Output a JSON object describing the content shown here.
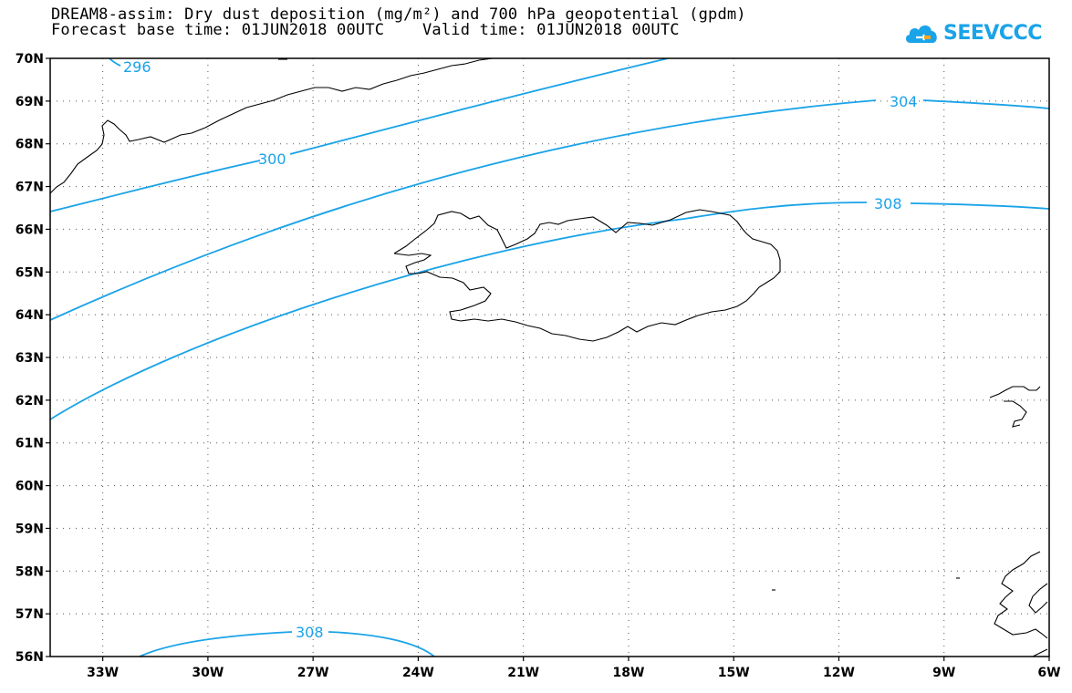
{
  "header": {
    "title_line1": "DREAM8-assim: Dry dust deposition (mg/m²) and 700 hPa geopotential (gpdm)",
    "title_line2": "Forecast base time: 01JUN2018 00UTC    Valid time: 01JUN2018 00UTC"
  },
  "logo": {
    "text": "SEEVCCC",
    "icon": "cloud-icon",
    "color": "#1aa3e8"
  },
  "map": {
    "lat_range": [
      56,
      70
    ],
    "lon_range": [
      -34.5,
      -6
    ],
    "lat_labels": [
      "70N",
      "69N",
      "68N",
      "67N",
      "66N",
      "65N",
      "64N",
      "63N",
      "62N",
      "61N",
      "60N",
      "59N",
      "58N",
      "57N",
      "56N"
    ],
    "lon_labels": [
      "33W",
      "30W",
      "27W",
      "24W",
      "21W",
      "18W",
      "15W",
      "12W",
      "9W",
      "6W"
    ],
    "contour_color": "#1aa3e8",
    "contour_labels": [
      "296",
      "300",
      "304",
      "308",
      "308"
    ]
  }
}
